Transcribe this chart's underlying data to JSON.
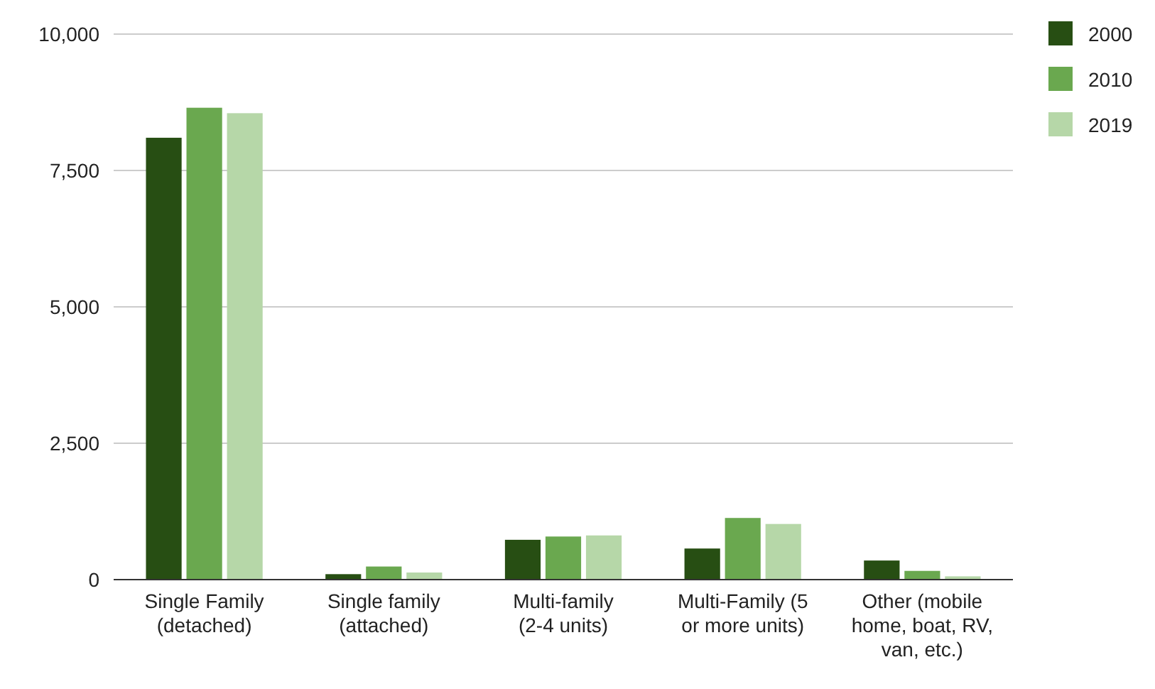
{
  "chart_data": {
    "type": "bar",
    "categories": [
      "Single Family (detached)",
      "Single family (attached)",
      "Multi-family (2-4 units)",
      "Multi-Family (5 or more units)",
      "Other (mobile home, boat, RV, van, etc.)"
    ],
    "series": [
      {
        "name": "2000",
        "color": "#274e13",
        "values": [
          8100,
          100,
          730,
          570,
          350
        ]
      },
      {
        "name": "2010",
        "color": "#6aa84f",
        "values": [
          8650,
          240,
          790,
          1130,
          160
        ]
      },
      {
        "name": "2019",
        "color": "#b6d7a8",
        "values": [
          8550,
          130,
          810,
          1020,
          60
        ]
      }
    ],
    "ylim": [
      0,
      10000
    ],
    "yticks": [
      {
        "value": 0,
        "label": "0"
      },
      {
        "value": 2500,
        "label": "2,500"
      },
      {
        "value": 5000,
        "label": "5,000"
      },
      {
        "value": 7500,
        "label": "7,500"
      },
      {
        "value": 10000,
        "label": "10,000"
      }
    ],
    "grid": "y",
    "legend": "top right"
  }
}
